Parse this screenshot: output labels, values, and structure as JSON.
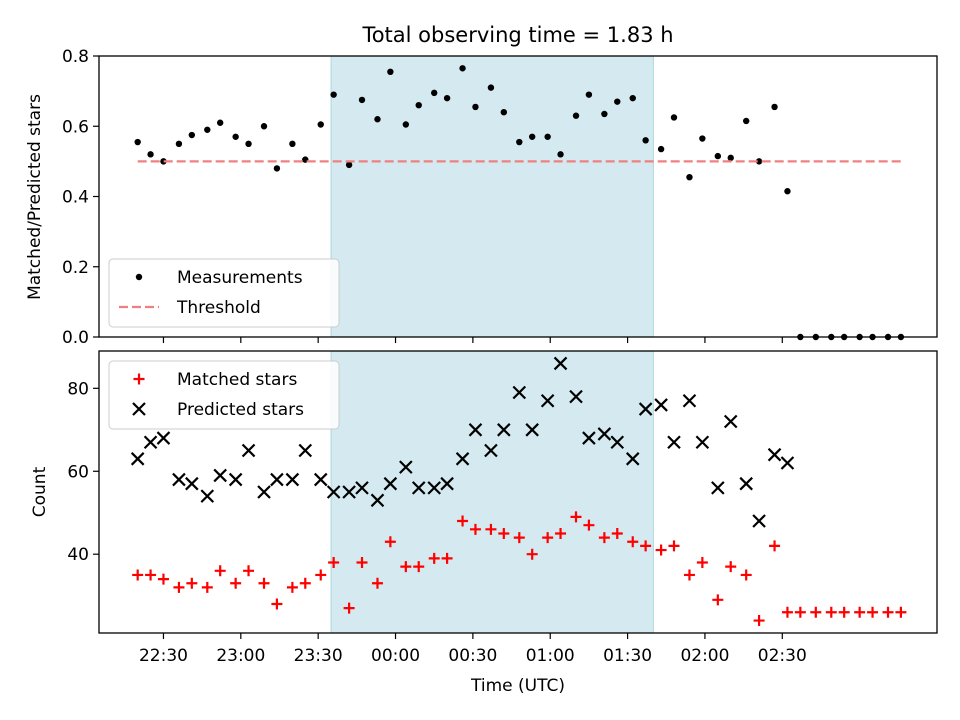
{
  "chart_data": [
    {
      "type": "scatter",
      "title": "Total observing time = 1.83 h",
      "xlabel": "",
      "ylabel": "Matched/Predicted stars",
      "ylim": [
        0,
        0.8
      ],
      "yticks": [
        0.0,
        0.2,
        0.4,
        0.6,
        0.8
      ],
      "ytick_labels": [
        "0.0",
        "0.2",
        "0.4",
        "0.6",
        "0.8"
      ],
      "xlim_minutes": [
        1325,
        1650
      ],
      "shaded_span_minutes": [
        1415,
        1540
      ],
      "shade_color": "#d4eaf0",
      "grid": false,
      "legend_position": "lower-left",
      "legend": [
        "Measurements",
        "Threshold"
      ],
      "series": [
        {
          "name": "Measurements",
          "marker": "dot",
          "color": "#000000",
          "x_minutes": [
            1340,
            1345,
            1350,
            1356,
            1361,
            1367,
            1372,
            1378,
            1383,
            1389,
            1394,
            1400,
            1405,
            1411,
            1416,
            1422,
            1427,
            1433,
            1438,
            1444,
            1449,
            1455,
            1460,
            1466,
            1471,
            1477,
            1482,
            1488,
            1493,
            1499,
            1504,
            1510,
            1515,
            1521,
            1526,
            1532,
            1537,
            1543,
            1548,
            1554,
            1559,
            1565,
            1570,
            1576,
            1581,
            1587,
            1592,
            1597,
            1603,
            1609,
            1614,
            1620,
            1625,
            1631,
            1636
          ],
          "values": [
            0.555,
            0.52,
            0.5,
            0.55,
            0.575,
            0.59,
            0.61,
            0.57,
            0.55,
            0.6,
            0.48,
            0.55,
            0.505,
            0.605,
            0.69,
            0.49,
            0.675,
            0.62,
            0.755,
            0.605,
            0.66,
            0.695,
            0.68,
            0.765,
            0.655,
            0.71,
            0.64,
            0.555,
            0.57,
            0.57,
            0.52,
            0.63,
            0.69,
            0.635,
            0.67,
            0.68,
            0.56,
            0.535,
            0.625,
            0.455,
            0.565,
            0.515,
            0.51,
            0.615,
            0.5,
            0.655,
            0.415,
            0.0,
            0.0,
            0.0,
            0.0,
            0.0,
            0.0,
            0.0,
            0.0
          ]
        },
        {
          "name": "Threshold",
          "style": "dashed",
          "color": "#f08080",
          "x_minutes": [
            1340,
            1636
          ],
          "values": [
            0.5,
            0.5
          ]
        }
      ]
    },
    {
      "type": "scatter",
      "title": "",
      "xlabel": "Time (UTC)",
      "ylabel": "Count",
      "ylim": [
        21,
        89
      ],
      "yticks": [
        40,
        60,
        80
      ],
      "ytick_labels": [
        "40",
        "60",
        "80"
      ],
      "xlim_minutes": [
        1325,
        1650
      ],
      "x_ticks_minutes": [
        1350,
        1380,
        1410,
        1440,
        1470,
        1500,
        1530,
        1560,
        1590
      ],
      "x_tick_labels": [
        "22:30",
        "23:00",
        "23:30",
        "00:00",
        "00:30",
        "01:00",
        "01:30",
        "02:00",
        "02:30"
      ],
      "shaded_span_minutes": [
        1415,
        1540
      ],
      "shade_color": "#d4eaf0",
      "grid": false,
      "legend_position": "upper-left",
      "legend": [
        "Matched stars",
        "Predicted stars"
      ],
      "series": [
        {
          "name": "Matched stars",
          "marker": "plus",
          "color": "#ff0000",
          "x_minutes": [
            1340,
            1345,
            1350,
            1356,
            1361,
            1367,
            1372,
            1378,
            1383,
            1389,
            1394,
            1400,
            1405,
            1411,
            1416,
            1422,
            1427,
            1433,
            1438,
            1444,
            1449,
            1455,
            1460,
            1466,
            1471,
            1477,
            1482,
            1488,
            1493,
            1499,
            1504,
            1510,
            1515,
            1521,
            1526,
            1532,
            1537,
            1543,
            1548,
            1554,
            1559,
            1565,
            1570,
            1576,
            1581,
            1587,
            1592,
            1597,
            1603,
            1609,
            1614,
            1620,
            1625,
            1631,
            1636
          ],
          "values": [
            35,
            35,
            34,
            32,
            33,
            32,
            36,
            33,
            36,
            33,
            28,
            32,
            33,
            35,
            38,
            27,
            38,
            33,
            43,
            37,
            37,
            39,
            39,
            48,
            46,
            46,
            45,
            44,
            40,
            44,
            45,
            49,
            47,
            44,
            45,
            43,
            42,
            41,
            42,
            35,
            38,
            29,
            37,
            35,
            24,
            42,
            26,
            26,
            26,
            26,
            26,
            26,
            26,
            26,
            26
          ]
        },
        {
          "name": "Predicted stars",
          "marker": "x",
          "color": "#000000",
          "x_minutes": [
            1340,
            1345,
            1350,
            1356,
            1361,
            1367,
            1372,
            1378,
            1383,
            1389,
            1394,
            1400,
            1405,
            1411,
            1416,
            1422,
            1427,
            1433,
            1438,
            1444,
            1449,
            1455,
            1460,
            1466,
            1471,
            1477,
            1482,
            1488,
            1493,
            1499,
            1504,
            1510,
            1515,
            1521,
            1526,
            1532,
            1537,
            1543,
            1548,
            1554,
            1559,
            1565,
            1570,
            1576,
            1581,
            1587,
            1592
          ],
          "values": [
            63,
            67,
            68,
            58,
            57,
            54,
            59,
            58,
            65,
            55,
            58,
            58,
            65,
            58,
            55,
            55,
            56,
            53,
            57,
            61,
            56,
            56,
            57,
            63,
            70,
            65,
            70,
            79,
            70,
            77,
            86,
            78,
            68,
            69,
            67,
            63,
            75,
            76,
            67,
            77,
            67,
            56,
            72,
            57,
            48,
            64,
            62
          ]
        }
      ]
    }
  ]
}
